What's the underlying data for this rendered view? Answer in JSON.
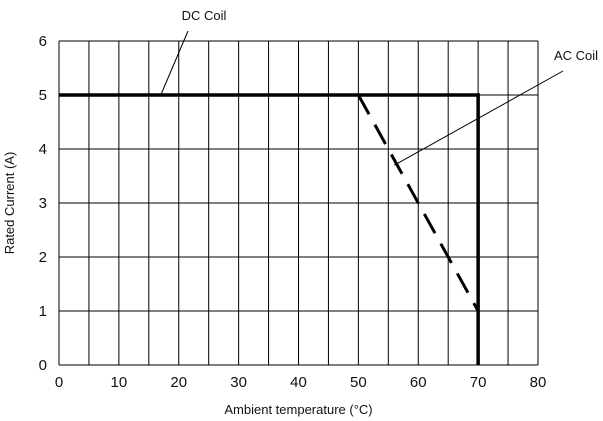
{
  "chart_data": {
    "type": "line",
    "title": "",
    "xlabel": "Ambient temperature (°C)",
    "ylabel": "Rated Current (A)",
    "xlim": [
      0,
      80
    ],
    "ylim": [
      0,
      6
    ],
    "x_ticks": [
      0,
      10,
      20,
      30,
      40,
      50,
      60,
      70,
      80
    ],
    "y_ticks": [
      0,
      1,
      2,
      3,
      4,
      5,
      6
    ],
    "x_grid_step": 5,
    "y_grid_step": 1,
    "grid": true,
    "series": [
      {
        "name": "DC Coil",
        "style": "solid",
        "color": "#000000",
        "x": [
          0,
          70,
          70
        ],
        "y": [
          5,
          5,
          0
        ]
      },
      {
        "name": "AC Coil",
        "style": "dashed",
        "color": "#000000",
        "x": [
          50,
          70
        ],
        "y": [
          5,
          1
        ]
      }
    ],
    "annotations": [
      {
        "text": "DC Coil",
        "points_to": {
          "x": 17,
          "y": 5
        }
      },
      {
        "text": "AC Coil",
        "points_to": {
          "x": 56,
          "y": 3.7
        }
      }
    ]
  }
}
